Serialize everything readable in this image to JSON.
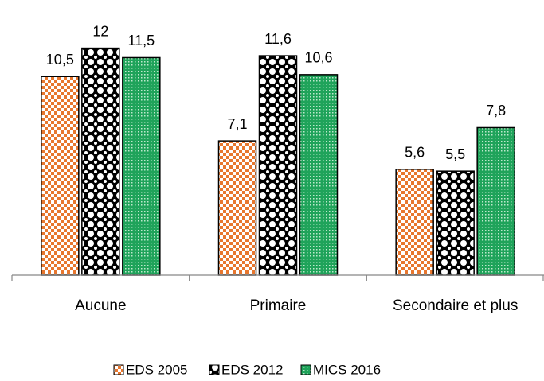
{
  "chart_data": {
    "type": "bar",
    "categories": [
      "Aucune",
      "Primaire",
      "Secondaire et plus"
    ],
    "series": [
      {
        "name": "EDS 2005",
        "color": "#e8772e",
        "values": [
          10.5,
          7.1,
          5.6
        ],
        "value_labels": [
          "10,5",
          "7,1",
          "5,6"
        ]
      },
      {
        "name": "EDS 2012",
        "color": "#000000",
        "values": [
          12,
          11.6,
          5.5
        ],
        "value_labels": [
          "12",
          "11,6",
          "5,5"
        ]
      },
      {
        "name": "MICS 2016",
        "color": "#1fa35a",
        "values": [
          11.5,
          10.6,
          7.8
        ],
        "value_labels": [
          "11,5",
          "10,6",
          "7,8"
        ]
      }
    ],
    "ylim": [
      0,
      14
    ],
    "legend": "bottom"
  }
}
